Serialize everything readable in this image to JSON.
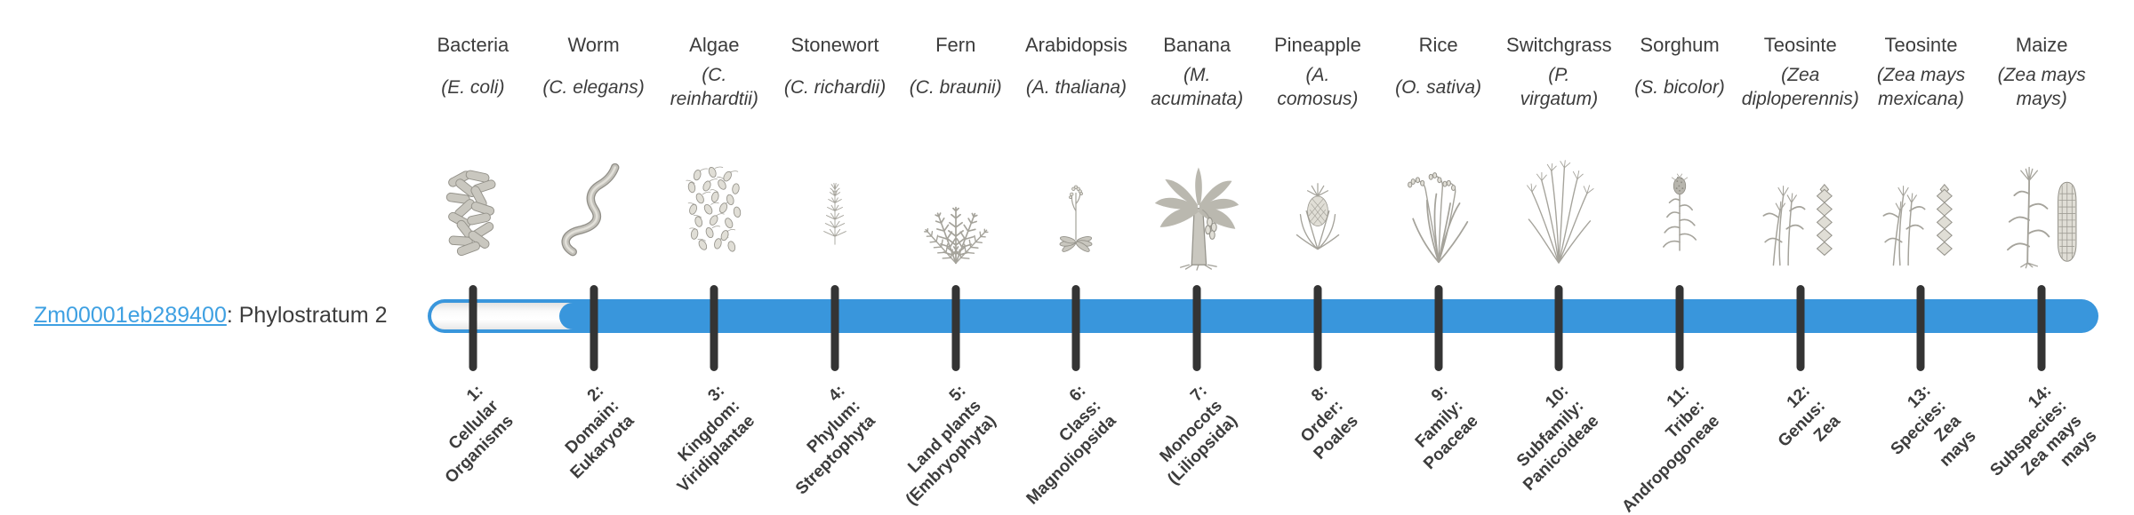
{
  "gene": {
    "id": "Zm00001eb289400",
    "rest": ": Phylostratum 2",
    "link_color": "#3ea0e2"
  },
  "timeline": {
    "bar_color": "#3996dc",
    "tick_color": "#343434",
    "track_color": "#ffffff",
    "phylostratum_value": 2,
    "num_strata": 14
  },
  "columns": [
    {
      "name": "Bacteria",
      "species_lines": [
        "(E. coli)"
      ],
      "icon": "bacteria-icon",
      "stratum_lines": [
        "1:",
        "Cellular",
        "Organisms"
      ]
    },
    {
      "name": "Worm",
      "species_lines": [
        "(C. elegans)"
      ],
      "icon": "worm-icon",
      "stratum_lines": [
        "2:",
        "Domain:",
        "Eukaryota"
      ]
    },
    {
      "name": "Algae",
      "species_lines": [
        "(C.",
        "reinhardtii)"
      ],
      "icon": "algae-icon",
      "stratum_lines": [
        "3:",
        "Kingdom:",
        "Viridiplantae"
      ]
    },
    {
      "name": "Stonewort",
      "species_lines": [
        "(C. richardii)"
      ],
      "icon": "stonewort-icon",
      "stratum_lines": [
        "4:",
        "Phylum:",
        "Streptophyta"
      ]
    },
    {
      "name": "Fern",
      "species_lines": [
        "(C. braunii)"
      ],
      "icon": "fern-icon",
      "stratum_lines": [
        "5:",
        "Land plants",
        "(Embryophyta)"
      ]
    },
    {
      "name": "Arabidopsis",
      "species_lines": [
        "(A. thaliana)"
      ],
      "icon": "arabidopsis-icon",
      "stratum_lines": [
        "6:",
        "Class:",
        "Magnoliopsida"
      ]
    },
    {
      "name": "Banana",
      "species_lines": [
        "(M.",
        "acuminata)"
      ],
      "icon": "banana-icon",
      "stratum_lines": [
        "7:",
        "Monocots",
        "(Liliopsida)"
      ]
    },
    {
      "name": "Pineapple",
      "species_lines": [
        "(A.",
        "comosus)"
      ],
      "icon": "pineapple-icon",
      "stratum_lines": [
        "8:",
        "Order:",
        "Poales"
      ]
    },
    {
      "name": "Rice",
      "species_lines": [
        "(O. sativa)"
      ],
      "icon": "rice-icon",
      "stratum_lines": [
        "9:",
        "Family:",
        "Poaceae"
      ]
    },
    {
      "name": "Switchgrass",
      "species_lines": [
        "(P.",
        "virgatum)"
      ],
      "icon": "switchgrass-icon",
      "stratum_lines": [
        "10:",
        "Subfamily:",
        "Panicoideae"
      ]
    },
    {
      "name": "Sorghum",
      "species_lines": [
        "(S. bicolor)"
      ],
      "icon": "sorghum-icon",
      "stratum_lines": [
        "11:",
        "Tribe:",
        "Andropogoneae"
      ]
    },
    {
      "name": "Teosinte",
      "species_lines": [
        "(Zea",
        "diploperennis)"
      ],
      "icon": "teosinte-icon",
      "stratum_lines": [
        "12:",
        "Genus:",
        "Zea"
      ]
    },
    {
      "name": "Teosinte",
      "species_lines": [
        "(Zea mays",
        "mexicana)"
      ],
      "icon": "teosinte-icon",
      "stratum_lines": [
        "13:",
        "Species:",
        "Zea",
        "mays"
      ]
    },
    {
      "name": "Maize",
      "species_lines": [
        "(Zea mays",
        "mays)"
      ],
      "icon": "maize-icon",
      "stratum_lines": [
        "14:",
        "Subspecies:",
        "Zea mays",
        "mays"
      ]
    }
  ]
}
